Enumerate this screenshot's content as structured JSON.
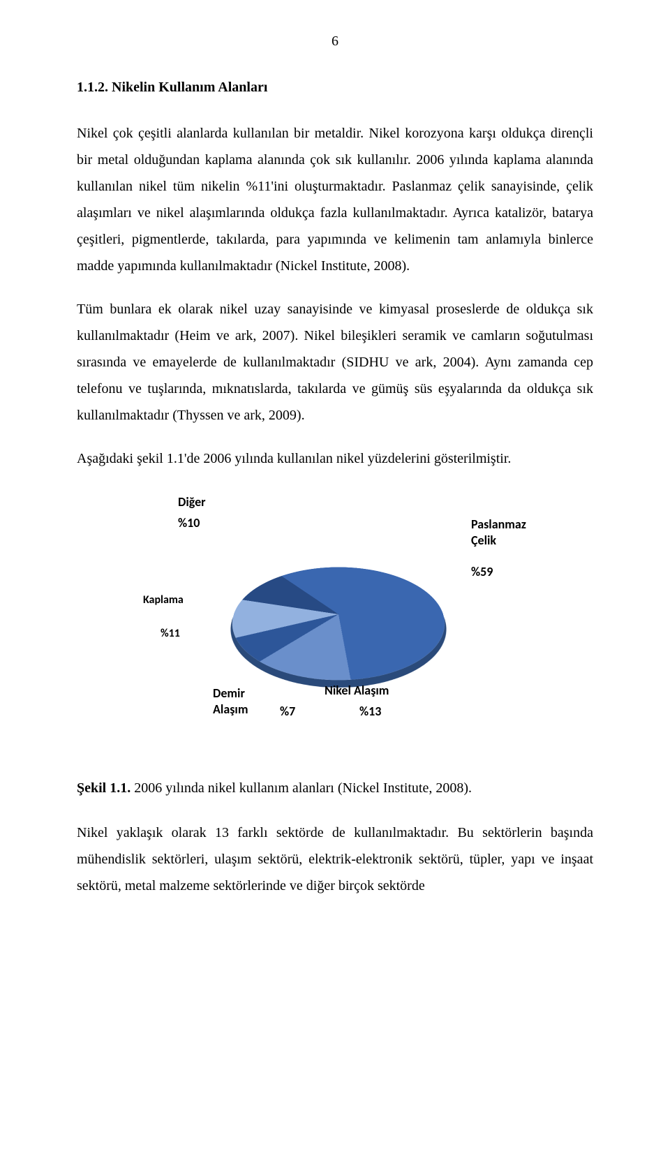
{
  "page_number": "6",
  "section_heading": "1.1.2. Nikelin Kullanım Alanları",
  "paragraphs": {
    "p1": "Nikel çok çeşitli alanlarda kullanılan bir metaldir. Nikel korozyona karşı oldukça dirençli bir metal olduğundan kaplama alanında çok sık kullanılır. 2006 yılında kaplama alanında kullanılan nikel tüm nikelin %11'ini oluşturmaktadır. Paslanmaz çelik sanayisinde, çelik alaşımları ve nikel alaşımlarında oldukça fazla kullanılmaktadır. Ayrıca katalizör, batarya çeşitleri, pigmentlerde, takılarda, para yapımında ve kelimenin tam anlamıyla binlerce madde yapımında kullanılmaktadır (Nickel Institute, 2008).",
    "p2": "Tüm bunlara ek olarak nikel uzay sanayisinde ve kimyasal proseslerde de oldukça sık kullanılmaktadır (Heim ve ark, 2007). Nikel bileşikleri seramik ve camların soğutulması sırasında ve emayelerde de kullanılmaktadır (SIDHU ve ark, 2004). Aynı zamanda cep telefonu ve tuşlarında, mıknatıslarda, takılarda ve gümüş süs eşyalarında da oldukça sık kullanılmaktadır (Thyssen ve ark, 2009).",
    "p3": "Aşağıdaki şekil 1.1'de 2006 yılında kullanılan nikel yüzdelerini gösterilmiştir.",
    "p4": "Nikel yaklaşık olarak 13 farklı sektörde de kullanılmaktadır. Bu sektörlerin başında mühendislik sektörleri, ulaşım sektörü, elektrik-elektronik sektörü, tüpler, yapı ve inşaat sektörü, metal malzeme sektörlerinde ve diğer birçok sektörde"
  },
  "figure_caption": {
    "label": "Şekil 1.1.",
    "text": "2006 yılında nikel kullanım alanları (Nickel Institute, 2008)."
  },
  "chart": {
    "type": "pie",
    "background_color": "#ffffff",
    "label_font": "Calibri",
    "label_fontsize": 18,
    "label_fontsize_small": 16,
    "label_color": "#000000",
    "slices": [
      {
        "name": "Paslanmaz Çelik",
        "value": 59,
        "percent_text": "%59",
        "color": "#3a67b0"
      },
      {
        "name": "Nikel Alaşım",
        "value": 13,
        "percent_text": "%13",
        "color": "#6a8fcb"
      },
      {
        "name": "Demir Alaşım",
        "value": 7,
        "percent_text": "%7",
        "color": "#2d5699"
      },
      {
        "name": "Kaplama",
        "value": 11,
        "percent_text": "%11",
        "color": "#92b1df"
      },
      {
        "name": "Diğer",
        "value": 10,
        "percent_text": "%10",
        "color": "#274a84"
      }
    ],
    "tilt_deg": 62,
    "depth_color": "#2a4a7a",
    "start_angle_deg": 322
  }
}
